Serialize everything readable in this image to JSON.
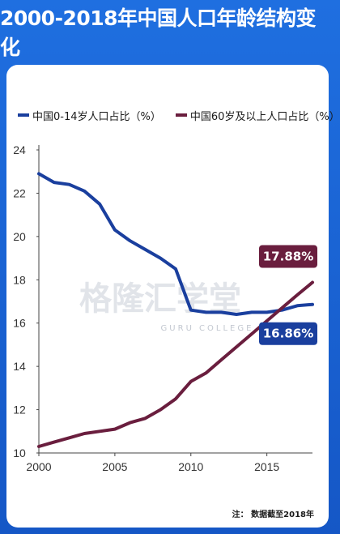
{
  "title": "2000-2018年中国人口年龄结构变化",
  "note": "注： 数据截至2018年",
  "watermark": {
    "main": "格隆汇学堂",
    "sub": "GURU COLLEGE"
  },
  "colors": {
    "series_0_14": "#1a3f9e",
    "series_60": "#6a1e3e",
    "background": "#1f6fe0"
  },
  "chart_data": {
    "type": "line",
    "ylim": [
      10,
      24
    ],
    "xlim": [
      2000,
      2018
    ],
    "y_ticks": [
      "24",
      "22",
      "20",
      "18",
      "16",
      "14",
      "12",
      "10"
    ],
    "x_ticks": [
      "2000",
      "2005",
      "2010",
      "2015"
    ],
    "grid": false,
    "legend_position": "top",
    "series": [
      {
        "name": "中国0-14岁人口占比（%）",
        "color": "#1a3f9e",
        "x": [
          2000,
          2001,
          2002,
          2003,
          2004,
          2005,
          2006,
          2007,
          2008,
          2009,
          2010,
          2011,
          2012,
          2013,
          2014,
          2015,
          2016,
          2017,
          2018
        ],
        "values": [
          22.9,
          22.5,
          22.4,
          22.1,
          21.5,
          20.3,
          19.8,
          19.4,
          19.0,
          18.5,
          16.6,
          16.5,
          16.5,
          16.4,
          16.5,
          16.5,
          16.6,
          16.8,
          16.86
        ],
        "end_label": "16.86%"
      },
      {
        "name": "中国60岁及以上人口占比（%）",
        "color": "#6a1e3e",
        "x": [
          2000,
          2001,
          2002,
          2003,
          2004,
          2005,
          2006,
          2007,
          2008,
          2009,
          2010,
          2011,
          2012,
          2013,
          2014,
          2015,
          2016,
          2017,
          2018
        ],
        "values": [
          10.3,
          10.5,
          10.7,
          10.9,
          11.0,
          11.1,
          11.4,
          11.6,
          12.0,
          12.5,
          13.3,
          13.7,
          14.3,
          14.9,
          15.5,
          16.1,
          16.7,
          17.3,
          17.88
        ],
        "end_label": "17.88%"
      }
    ]
  }
}
